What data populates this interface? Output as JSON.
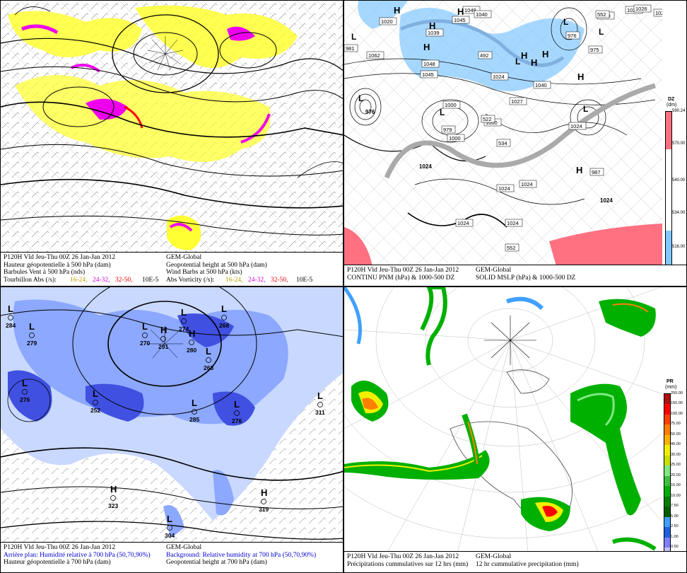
{
  "panels": {
    "tl": {
      "col1": [
        "P120H Vld Jeu-Thu 00Z 26 Jan-Jan 2012",
        "Hauteur géopotentielle à 500 hPa (dam)",
        "Barbules Vent à 500 hPa (nds)",
        "Tourbillon Abs (/s):"
      ],
      "col2": [
        "GEM-Global",
        "Geopotential height at 500 hPa (dam)",
        "Wind Barbs at 500 hPa  (kts)",
        "Abs Vorticity (/s):"
      ],
      "ranges": [
        "16-24,",
        "24-32,",
        "32-50,",
        "10E-5"
      ]
    },
    "tr": {
      "col1": [
        "P120H Vld Jeu-Thu 00Z 26 Jan-Jan 2012",
        "CONTINU PNM  (hPa) & 1000-500 DZ"
      ],
      "col2": [
        "GEM-Global",
        "SOLID  MSLP (hPa) & 1000-500 DZ"
      ],
      "legend_title": "DZ",
      "legend_unit": "(dm)",
      "legend_ticks": [
        "590.24",
        "570.00",
        "540.00",
        "534.00",
        "516.00",
        "510.00"
      ],
      "labels": [
        "1020",
        "1049",
        "1040",
        "1028",
        "102",
        "1026",
        "1039",
        "1045",
        "1000",
        "976",
        "981",
        "1062",
        "1048",
        "1045",
        "1024",
        "492",
        "1040",
        "976",
        "1000",
        "975",
        "1000",
        "1027",
        "1024",
        "979",
        "1000",
        "522",
        "534",
        "1024",
        "1024",
        "987",
        "1024",
        "1024",
        "1024",
        "1024",
        "552",
        "552"
      ],
      "highs": [
        "H",
        "H",
        "H",
        "H",
        "H",
        "H",
        "H",
        "H",
        "H"
      ],
      "lows": [
        "L",
        "L",
        "L",
        "L",
        "L",
        "L",
        "L"
      ]
    },
    "bl": {
      "col1": [
        "P120H Vld Jeu-Thu 00Z 26 Jan-Jan 2012",
        "Arrière plan: Humidité relative à 700 hPa (50,70,90%)",
        "Hauteur géopotentielle à 700 hPa (dam)"
      ],
      "col2": [
        "GEM-Global",
        "Background: Relative humidity at 700 hPa (50,70,90%)",
        "Geopotential height at 700 hPa (dam)"
      ],
      "centers": [
        [
          "L",
          "284"
        ],
        [
          "L",
          "279"
        ],
        [
          "L",
          "270"
        ],
        [
          "L",
          "276"
        ],
        [
          "L",
          "252"
        ],
        [
          "H",
          "291"
        ],
        [
          "L",
          "274"
        ],
        [
          "L",
          "268"
        ],
        [
          "H",
          "280"
        ],
        [
          "L",
          "263"
        ],
        [
          "L",
          "285"
        ],
        [
          "L",
          "276"
        ],
        [
          "L",
          "311"
        ],
        [
          "H",
          "323"
        ],
        [
          "H",
          "319"
        ],
        [
          "L",
          "304"
        ]
      ]
    },
    "br": {
      "col1": [
        "P120H Vld Jeu-Thu 00Z 26 Jan-Jan 2012",
        "Précipitations cummulatives sur 12 hrs (mm)"
      ],
      "col2": [
        "GEM-Global",
        "12 hr cummulative precipitation   (mm)"
      ],
      "legend_title": "PR",
      "legend_unit": "(mm)",
      "legend_ticks": [
        "250.00",
        "150.00",
        "100.00",
        "75.00",
        "50.00",
        "40.00",
        "30.00",
        "25.00",
        "20.00",
        "15.00",
        "10.00",
        "7.50",
        "5.00",
        "2.50",
        "1.00",
        "0.50",
        "0.25",
        "0.00"
      ]
    }
  },
  "colors": {
    "vort_yellow": "#ffff33",
    "vort_magenta": "#ee00ee",
    "vort_red": "#ff0000",
    "dz_cold": "#80c8ff",
    "dz_warm": "#ff7080",
    "rh_light": "#c8d8ff",
    "rh_mid": "#8ca8ff",
    "rh_dark": "#4050e0",
    "pr_green": "#00b000",
    "pr_light": "#80e880",
    "pr_yellow": "#f0f000",
    "pr_orange": "#ff8000",
    "pr_red": "#ff0000",
    "pr_cyan": "#40a0ff"
  }
}
